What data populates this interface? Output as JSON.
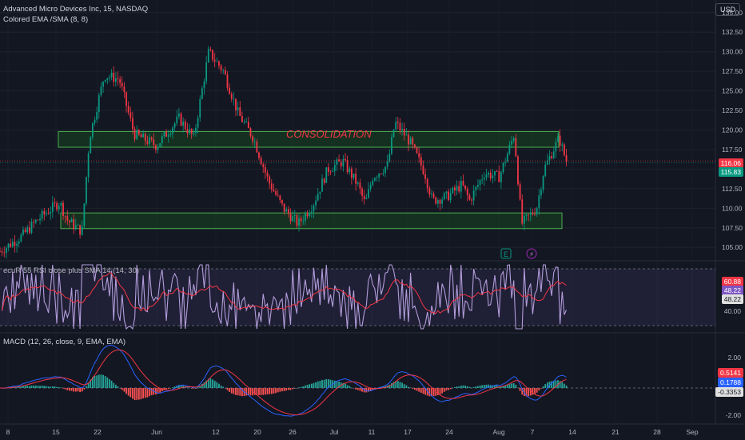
{
  "header": {
    "symbol_line": "Advanced Micro Devices Inc, 15, NASDAQ",
    "indicator_line": "Colored EMA /SMA (8, 8)",
    "currency": "USD"
  },
  "annotation": {
    "text": "CONSOLIDATION",
    "color": "#f23645",
    "earnings_marker": "E",
    "split_marker": "⚡"
  },
  "price_tags": {
    "last": "116.06",
    "last_color": "#f23645",
    "ema": "115.83",
    "ema_color": "#089981"
  },
  "rsi_panel": {
    "label": "ecuR 55 RSI close plus SMA 14 (14, 30)",
    "tag_rsi": "60.88",
    "tag_sma": "48.22",
    "tag_sma2": "48.22",
    "level_label": "40.00"
  },
  "macd_panel": {
    "label": "MACD (12, 26, close, 9, EMA, EMA)",
    "tag_hist": "0.5141",
    "tag_macd": "0.1788",
    "tag_signal": "-0.3353",
    "ticks": [
      "2.00",
      "-2.00"
    ]
  },
  "colors": {
    "up": "#089981",
    "down": "#f23645",
    "zone_fill": "#1b5e20",
    "zone_border": "#4caf50",
    "rsi_band": "#7e57c2",
    "rsi_line": "#b39ddb",
    "rsi_sma": "#f23645",
    "macd_line": "#2962ff",
    "macd_signal": "#f23645"
  },
  "chart_data": {
    "type": "candlestick",
    "y_axis_ticks": [
      "135.00",
      "132.50",
      "130.00",
      "127.50",
      "125.00",
      "122.50",
      "120.00",
      "117.50",
      "115.00",
      "112.50",
      "110.00",
      "107.50",
      "105.00"
    ],
    "ylim": [
      104,
      136
    ],
    "x_axis_ticks": [
      "8",
      "15",
      "22",
      "Jun",
      "12",
      "20",
      "26",
      "Jul",
      "11",
      "17",
      "24",
      "Aug",
      "7",
      "14",
      "21",
      "28",
      "Sep"
    ],
    "resistance_zone": [
      117.8,
      119.8
    ],
    "support_zone": [
      107.4,
      109.4
    ],
    "price_path": [
      [
        0,
        104.5
      ],
      [
        3,
        106.5
      ],
      [
        5,
        108.5
      ],
      [
        8,
        110.8
      ],
      [
        9,
        108.5
      ],
      [
        11,
        107.0
      ],
      [
        12,
        119.0
      ],
      [
        14,
        127.0
      ],
      [
        16,
        126.5
      ],
      [
        18,
        119.5
      ],
      [
        21,
        118.0
      ],
      [
        24,
        121.5
      ],
      [
        26,
        119.0
      ],
      [
        28,
        130.0
      ],
      [
        30,
        127.5
      ],
      [
        32,
        122.0
      ],
      [
        34,
        119.0
      ],
      [
        36,
        113.5
      ],
      [
        38,
        110.0
      ],
      [
        40,
        108.0
      ],
      [
        42,
        110.5
      ],
      [
        44,
        115.0
      ],
      [
        46,
        116.0
      ],
      [
        48,
        113.0
      ],
      [
        49,
        110.5
      ],
      [
        50,
        114.0
      ],
      [
        52,
        115.5
      ],
      [
        53,
        121.0
      ],
      [
        55,
        118.5
      ],
      [
        57,
        114.5
      ],
      [
        58,
        111.0
      ],
      [
        60,
        111.5
      ],
      [
        62,
        113.0
      ],
      [
        63,
        111.0
      ],
      [
        65,
        114.5
      ],
      [
        67,
        114.0
      ],
      [
        69,
        119.5
      ],
      [
        70,
        108.0
      ],
      [
        72,
        110.0
      ],
      [
        73,
        115.0
      ],
      [
        75,
        119.0
      ],
      [
        76,
        116.0
      ]
    ],
    "x_max": 96
  }
}
